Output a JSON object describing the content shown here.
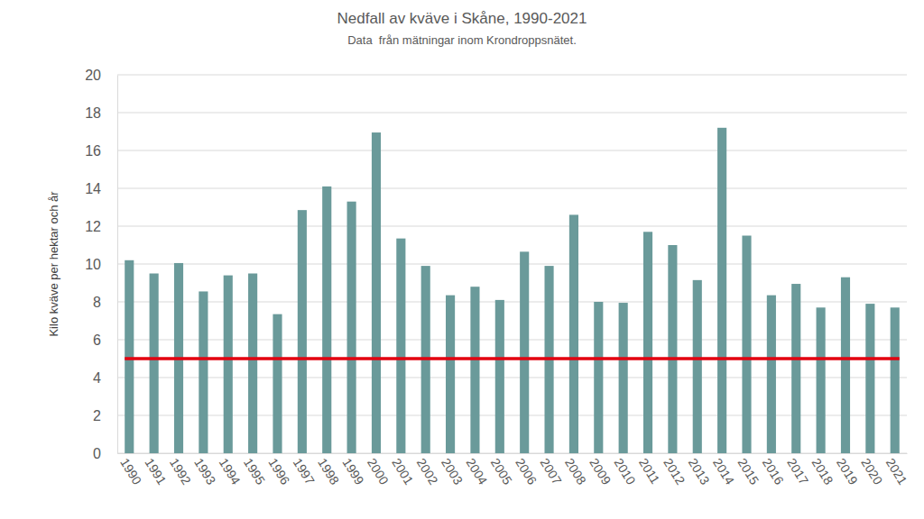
{
  "chart_data": {
    "type": "bar",
    "title": "Nedfall av kväve i Skåne, 1990-2021",
    "subtitle": "Data  från mätningar inom Krondroppsnätet.",
    "y_label": "Kilo kväve per hektar och år",
    "categories": [
      "1990",
      "1991",
      "1992",
      "1993",
      "1994",
      "1995",
      "1996",
      "1997",
      "1998",
      "1999",
      "2000",
      "2001",
      "2002",
      "2003",
      "2004",
      "2005",
      "2006",
      "2007",
      "2008",
      "2009",
      "2010",
      "2011",
      "2012",
      "2013",
      "2014",
      "2015",
      "2016",
      "2017",
      "2018",
      "2019",
      "2020",
      "2021"
    ],
    "values": [
      10.2,
      9.5,
      10.05,
      8.55,
      9.4,
      9.5,
      7.35,
      12.85,
      14.1,
      13.3,
      16.95,
      11.35,
      9.9,
      8.35,
      8.8,
      8.1,
      10.65,
      9.9,
      12.6,
      8.0,
      7.95,
      11.7,
      11.0,
      9.15,
      17.2,
      11.5,
      8.35,
      8.95,
      7.7,
      9.3,
      7.9,
      7.7
    ],
    "color": "#6a9a9a",
    "threshold": {
      "value": 5,
      "color": "#e3000f"
    },
    "ylim": [
      0,
      20
    ],
    "yticks": [
      0,
      2,
      4,
      6,
      8,
      10,
      12,
      14,
      16,
      18,
      20
    ],
    "grid": true
  }
}
